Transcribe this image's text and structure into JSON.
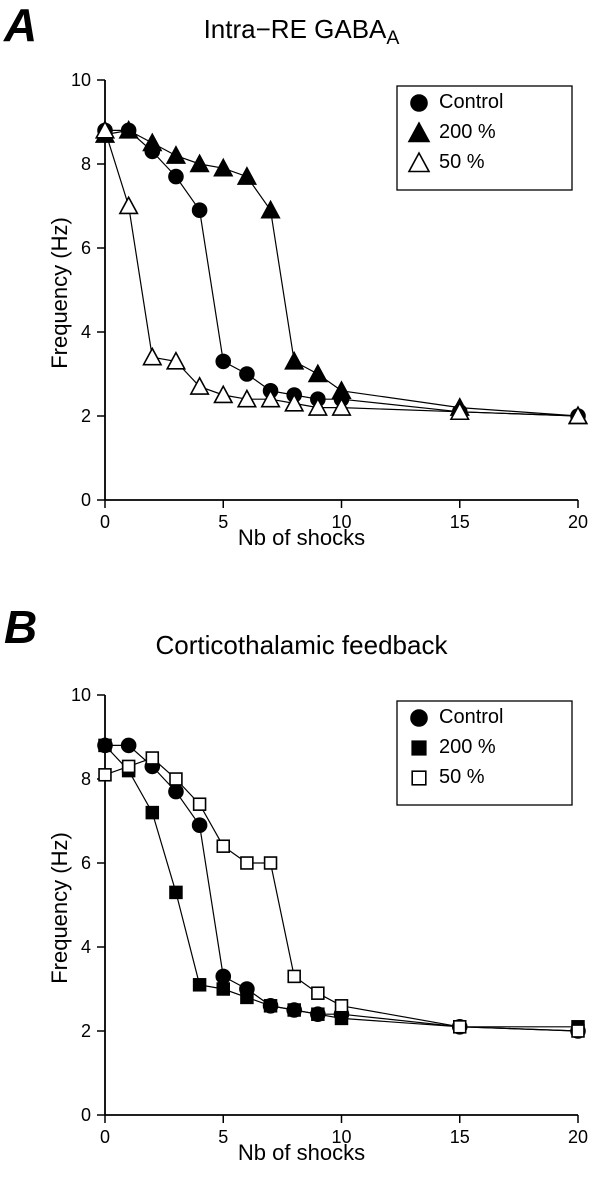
{
  "panelA": {
    "letter": "A",
    "letter_fontsize": 46,
    "title_prefix": "Intra−RE GABA",
    "title_subscript": "A",
    "title_fontsize": 26,
    "chart": {
      "type": "scatter+line",
      "xlabel": "Nb of shocks",
      "ylabel": "Frequency (Hz)",
      "label_fontsize": 22,
      "tick_fontsize": 18,
      "xlim": [
        0,
        20
      ],
      "ylim": [
        0,
        10
      ],
      "xticks": [
        0,
        5,
        10,
        15,
        20
      ],
      "yticks": [
        0,
        2,
        4,
        6,
        8,
        10
      ],
      "background_color": "#ffffff",
      "axis_color": "#000000",
      "line_color": "#000000",
      "line_width": 1.2,
      "marker_size": 7,
      "legend": {
        "position": "top-right",
        "border_color": "#000000",
        "bg_color": "#ffffff",
        "fontsize": 20,
        "items": [
          {
            "label": "Control",
            "marker": "circle",
            "fill": "#000000",
            "stroke": "#000000"
          },
          {
            "label": "  200 %",
            "marker": "triangle",
            "fill": "#000000",
            "stroke": "#000000"
          },
          {
            "label": "    50 %",
            "marker": "triangle",
            "fill": "#ffffff",
            "stroke": "#000000"
          }
        ]
      },
      "series": [
        {
          "name": "Control",
          "marker": "circle",
          "fill": "#000000",
          "stroke": "#000000",
          "x": [
            0,
            1,
            2,
            3,
            4,
            5,
            6,
            7,
            8,
            9,
            10,
            15,
            20
          ],
          "y": [
            8.8,
            8.8,
            8.3,
            7.7,
            6.9,
            3.3,
            3.0,
            2.6,
            2.5,
            2.4,
            2.4,
            2.1,
            2.0
          ]
        },
        {
          "name": "200%",
          "marker": "triangle",
          "fill": "#000000",
          "stroke": "#000000",
          "x": [
            0,
            1,
            2,
            3,
            4,
            5,
            6,
            7,
            8,
            9,
            10,
            15,
            20
          ],
          "y": [
            8.7,
            8.8,
            8.5,
            8.2,
            8.0,
            7.9,
            7.7,
            6.9,
            3.3,
            3.0,
            2.6,
            2.2,
            2.0
          ]
        },
        {
          "name": "50%",
          "marker": "triangle",
          "fill": "#ffffff",
          "stroke": "#000000",
          "x": [
            0,
            1,
            2,
            3,
            4,
            5,
            6,
            7,
            8,
            9,
            10,
            15,
            20
          ],
          "y": [
            8.8,
            7.0,
            3.4,
            3.3,
            2.7,
            2.5,
            2.4,
            2.4,
            2.3,
            2.2,
            2.2,
            2.1,
            2.0
          ]
        }
      ]
    }
  },
  "panelB": {
    "letter": "B",
    "letter_fontsize": 46,
    "title": "Corticothalamic feedback",
    "title_fontsize": 26,
    "chart": {
      "type": "scatter+line",
      "xlabel": "Nb of shocks",
      "ylabel": "Frequency (Hz)",
      "label_fontsize": 22,
      "tick_fontsize": 18,
      "xlim": [
        0,
        20
      ],
      "ylim": [
        0,
        10
      ],
      "xticks": [
        0,
        5,
        10,
        15,
        20
      ],
      "yticks": [
        0,
        2,
        4,
        6,
        8,
        10
      ],
      "background_color": "#ffffff",
      "axis_color": "#000000",
      "line_color": "#000000",
      "line_width": 1.2,
      "marker_size": 7,
      "legend": {
        "position": "top-right",
        "border_color": "#000000",
        "bg_color": "#ffffff",
        "fontsize": 20,
        "items": [
          {
            "label": "Control",
            "marker": "circle",
            "fill": "#000000",
            "stroke": "#000000"
          },
          {
            "label": "  200 %",
            "marker": "square",
            "fill": "#000000",
            "stroke": "#000000"
          },
          {
            "label": "    50 %",
            "marker": "square",
            "fill": "#ffffff",
            "stroke": "#000000"
          }
        ]
      },
      "series": [
        {
          "name": "Control",
          "marker": "circle",
          "fill": "#000000",
          "stroke": "#000000",
          "x": [
            0,
            1,
            2,
            3,
            4,
            5,
            6,
            7,
            8,
            9,
            10,
            15,
            20
          ],
          "y": [
            8.8,
            8.8,
            8.3,
            7.7,
            6.9,
            3.3,
            3.0,
            2.6,
            2.5,
            2.4,
            2.4,
            2.1,
            2.0
          ]
        },
        {
          "name": "200%",
          "marker": "square",
          "fill": "#000000",
          "stroke": "#000000",
          "x": [
            0,
            1,
            2,
            3,
            4,
            5,
            6,
            7,
            8,
            9,
            10,
            15,
            20
          ],
          "y": [
            8.8,
            8.2,
            7.2,
            5.3,
            3.1,
            3.0,
            2.8,
            2.6,
            2.5,
            2.4,
            2.3,
            2.1,
            2.1
          ]
        },
        {
          "name": "50%",
          "marker": "square",
          "fill": "#ffffff",
          "stroke": "#000000",
          "x": [
            0,
            1,
            2,
            3,
            4,
            5,
            6,
            7,
            8,
            9,
            10,
            15,
            20
          ],
          "y": [
            8.1,
            8.3,
            8.5,
            8.0,
            7.4,
            6.4,
            6.0,
            6.0,
            3.3,
            2.9,
            2.6,
            2.1,
            2.0
          ]
        }
      ]
    }
  }
}
